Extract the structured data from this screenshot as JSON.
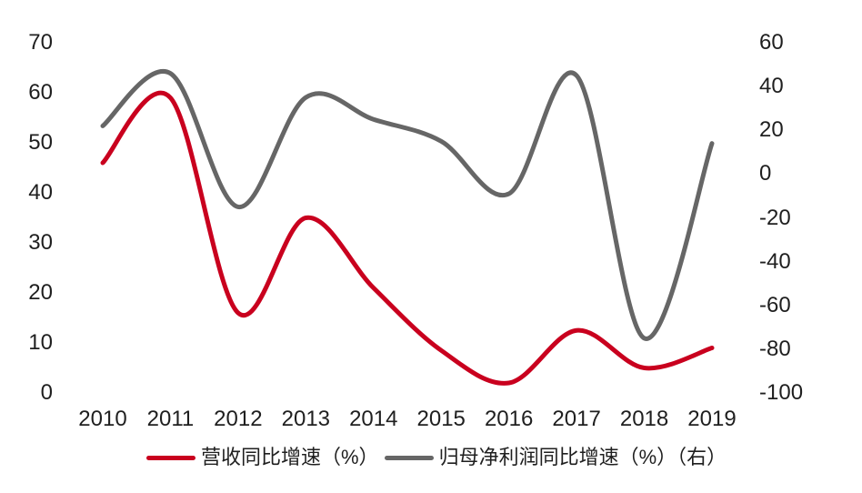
{
  "chart_data": {
    "type": "line",
    "title": "",
    "xlabel": "",
    "ylabel_left": "",
    "ylabel_right": "",
    "grid": false,
    "legend_position": "bottom",
    "categories": [
      "2010",
      "2011",
      "2012",
      "2013",
      "2014",
      "2015",
      "2016",
      "2017",
      "2018",
      "2019"
    ],
    "series": [
      {
        "name": "营收同比增速（%）",
        "axis": "left",
        "color": "#C9001E",
        "values": [
          46,
          59,
          16,
          35,
          21,
          8.5,
          2,
          12.5,
          5,
          9
        ]
      },
      {
        "name": "归母净利润同比增速（%）（右）",
        "axis": "right",
        "color": "#666666",
        "values": [
          22,
          46,
          -15,
          35,
          25,
          15,
          -9,
          45,
          -75,
          14
        ]
      }
    ],
    "left_axis": {
      "min": 0,
      "max": 70,
      "step": 10,
      "tick_labels": [
        "0",
        "10",
        "20",
        "30",
        "40",
        "50",
        "60",
        "70"
      ]
    },
    "right_axis": {
      "min": -100,
      "max": 60,
      "step": 20,
      "tick_labels": [
        "-100",
        "-80",
        "-60",
        "-40",
        "-20",
        "0",
        "20",
        "40",
        "60"
      ]
    }
  },
  "colors": {
    "background": "#FFFFFF",
    "text": "#1F1F1F"
  }
}
